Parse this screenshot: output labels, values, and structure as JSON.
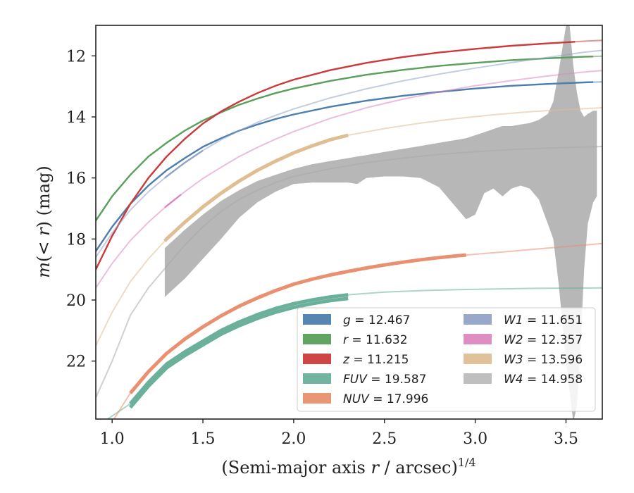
{
  "chart_data": {
    "type": "line",
    "xlabel_main": "(Semi-major axis ",
    "xlabel_var": "r",
    "xlabel_unit": " / arcsec)",
    "xlabel_sup": "1/4",
    "ylabel_main": "m(< r) (mag)",
    "xlim": [
      0.91,
      3.7
    ],
    "ylim": [
      23.9,
      11.0
    ],
    "y_inverted": true,
    "xticks": [
      1.0,
      1.5,
      2.0,
      2.5,
      3.0,
      3.5
    ],
    "xtick_labels": [
      "1.0",
      "1.5",
      "2.0",
      "2.5",
      "3.0",
      "3.5"
    ],
    "yticks": [
      12,
      14,
      16,
      18,
      20,
      22
    ],
    "ytick_labels": [
      "12",
      "14",
      "16",
      "18",
      "20",
      "22"
    ],
    "legend_position": "lower-right",
    "series": [
      {
        "name": "g",
        "label_value": "12.467",
        "color": "#4c7fae",
        "x": [
          0.91,
          1.0,
          1.1,
          1.2,
          1.3,
          1.4,
          1.5,
          1.6,
          1.7,
          1.8,
          1.9,
          2.0,
          2.2,
          2.4,
          2.6,
          2.8,
          3.0,
          3.2,
          3.4,
          3.6,
          3.7
        ],
        "y": [
          18.4,
          17.6,
          16.85,
          16.25,
          15.75,
          15.35,
          14.98,
          14.7,
          14.45,
          14.25,
          14.07,
          13.92,
          13.67,
          13.47,
          13.31,
          13.18,
          13.07,
          12.98,
          12.92,
          12.87,
          12.85
        ],
        "solid_until": 3.65
      },
      {
        "name": "r",
        "label_value": "11.632",
        "color": "#5aa05a",
        "x": [
          0.91,
          1.0,
          1.1,
          1.2,
          1.3,
          1.4,
          1.5,
          1.6,
          1.7,
          1.8,
          1.9,
          2.0,
          2.2,
          2.4,
          2.6,
          2.8,
          3.0,
          3.2,
          3.4,
          3.6,
          3.7
        ],
        "y": [
          17.4,
          16.6,
          15.9,
          15.3,
          14.85,
          14.45,
          14.12,
          13.85,
          13.6,
          13.4,
          13.22,
          13.07,
          12.82,
          12.62,
          12.46,
          12.33,
          12.23,
          12.14,
          12.08,
          12.03,
          12.01
        ],
        "solid_until": 3.65
      },
      {
        "name": "z",
        "label_value": "11.215",
        "color": "#cc3a3a",
        "x": [
          0.91,
          1.0,
          1.1,
          1.2,
          1.3,
          1.4,
          1.5,
          1.6,
          1.7,
          1.8,
          1.9,
          2.0,
          2.2,
          2.4,
          2.6,
          2.8,
          3.0,
          3.2,
          3.4,
          3.6,
          3.7
        ],
        "y": [
          19.0,
          17.9,
          16.85,
          16.0,
          15.3,
          14.72,
          14.22,
          13.82,
          13.5,
          13.22,
          12.98,
          12.78,
          12.47,
          12.23,
          12.04,
          11.89,
          11.77,
          11.67,
          11.59,
          11.52,
          11.49
        ],
        "solid_until": 3.55
      },
      {
        "name": "FUV",
        "label_value": "19.587",
        "color": "#6ab09b",
        "x": [
          1.1,
          1.2,
          1.3,
          1.4,
          1.5,
          1.6,
          1.7,
          1.8,
          1.9,
          2.0,
          2.1,
          2.2,
          2.3,
          2.5,
          2.7,
          2.9,
          3.1,
          3.3,
          3.5,
          3.7
        ],
        "y": [
          23.4,
          22.7,
          22.1,
          21.7,
          21.35,
          21.0,
          20.72,
          20.48,
          20.28,
          20.12,
          20.0,
          19.9,
          19.83,
          19.74,
          19.69,
          19.66,
          19.64,
          19.62,
          19.61,
          19.6
        ],
        "solid_until": 2.3,
        "faint_before": [
          0.95,
          24.0
        ]
      },
      {
        "name": "NUV",
        "label_value": "17.996",
        "color": "#e89070",
        "x": [
          1.1,
          1.2,
          1.3,
          1.4,
          1.5,
          1.6,
          1.7,
          1.8,
          1.9,
          2.0,
          2.1,
          2.2,
          2.3,
          2.4,
          2.5,
          2.6,
          2.7,
          2.8,
          2.9,
          3.0,
          3.2,
          3.4,
          3.6,
          3.7
        ],
        "y": [
          23.05,
          22.35,
          21.75,
          21.28,
          20.88,
          20.52,
          20.2,
          19.93,
          19.69,
          19.48,
          19.32,
          19.18,
          19.06,
          18.95,
          18.85,
          18.76,
          18.68,
          18.61,
          18.55,
          18.5,
          18.4,
          18.3,
          18.2,
          18.15
        ],
        "solid_until": 2.95,
        "faint_before": [
          1.0,
          24.0
        ]
      },
      {
        "name": "W1",
        "label_value": "11.651",
        "color": "#92a3c7",
        "x": [
          0.91,
          1.0,
          1.1,
          1.2,
          1.3,
          1.4,
          1.5,
          1.6,
          1.7,
          1.8,
          1.9,
          2.0,
          2.2,
          2.4,
          2.6,
          2.8,
          3.0,
          3.2,
          3.4,
          3.6,
          3.7
        ],
        "y": [
          18.6,
          17.8,
          17.05,
          16.45,
          15.95,
          15.5,
          15.1,
          14.75,
          14.45,
          14.18,
          13.95,
          13.74,
          13.38,
          13.08,
          12.82,
          12.6,
          12.4,
          12.22,
          12.05,
          11.88,
          11.82
        ],
        "solid_until": 1.5,
        "solid_from": 1.29
      },
      {
        "name": "W2",
        "label_value": "12.357",
        "color": "#dd88c0",
        "x": [
          0.91,
          1.0,
          1.1,
          1.2,
          1.3,
          1.4,
          1.5,
          1.6,
          1.7,
          1.8,
          1.9,
          2.0,
          2.2,
          2.4,
          2.6,
          2.8,
          3.0,
          3.2,
          3.4,
          3.6,
          3.7
        ],
        "y": [
          19.6,
          18.8,
          18.05,
          17.45,
          16.92,
          16.45,
          16.02,
          15.65,
          15.3,
          15.0,
          14.73,
          14.48,
          14.05,
          13.7,
          13.42,
          13.18,
          12.98,
          12.81,
          12.66,
          12.53,
          12.48
        ],
        "solid_until": 1.38,
        "solid_from": 1.29
      },
      {
        "name": "W3",
        "label_value": "13.596",
        "color": "#dfbe94",
        "x": [
          0.91,
          1.0,
          1.1,
          1.2,
          1.3,
          1.4,
          1.5,
          1.6,
          1.7,
          1.8,
          1.9,
          2.0,
          2.1,
          2.2,
          2.3,
          2.5,
          2.7,
          2.9,
          3.1,
          3.3,
          3.5,
          3.7
        ],
        "y": [
          21.5,
          20.4,
          19.4,
          18.65,
          18.0,
          17.45,
          16.95,
          16.5,
          16.1,
          15.75,
          15.45,
          15.18,
          14.95,
          14.75,
          14.6,
          14.38,
          14.2,
          14.05,
          13.93,
          13.83,
          13.76,
          13.7
        ],
        "solid_until": 2.3,
        "solid_from": 1.29
      },
      {
        "name": "W4",
        "label_value": "14.958",
        "color": "#aaaaaa",
        "x": [
          0.91,
          1.0,
          1.1,
          1.2,
          1.3,
          1.4,
          1.5,
          1.6,
          1.7,
          1.8,
          1.9,
          2.0,
          2.2,
          2.4,
          2.6,
          2.8,
          3.0,
          3.2,
          3.4,
          3.6,
          3.7
        ],
        "y": [
          23.2,
          22.0,
          20.5,
          19.6,
          18.9,
          18.2,
          17.6,
          17.1,
          16.7,
          16.4,
          16.15,
          15.95,
          15.7,
          15.5,
          15.35,
          15.23,
          15.14,
          15.07,
          15.02,
          14.99,
          14.97
        ],
        "band_x": [
          1.29,
          1.4,
          1.5,
          1.6,
          1.7,
          1.8,
          1.9,
          2.0,
          2.1,
          2.2,
          2.3,
          2.35,
          2.4,
          2.5,
          2.6,
          2.7,
          2.8,
          2.9,
          2.95,
          3.0,
          3.05,
          3.1,
          3.15,
          3.2,
          3.25,
          3.3,
          3.35,
          3.4,
          3.43,
          3.46,
          3.5,
          3.52,
          3.54,
          3.56,
          3.58,
          3.6,
          3.62,
          3.65,
          3.67
        ],
        "band_upper": [
          18.3,
          17.7,
          17.2,
          16.75,
          16.4,
          16.1,
          15.9,
          15.7,
          15.55,
          15.45,
          15.35,
          15.3,
          15.25,
          15.15,
          15.05,
          14.95,
          14.85,
          14.75,
          14.7,
          14.6,
          14.5,
          14.4,
          14.3,
          14.3,
          14.25,
          14.2,
          14.1,
          13.9,
          13.5,
          12.5,
          11.0,
          11.0,
          12.3,
          13.2,
          13.8,
          14.0,
          13.9,
          13.8,
          13.8
        ],
        "band_lower": [
          19.9,
          19.3,
          18.65,
          18.0,
          17.3,
          16.8,
          16.45,
          16.2,
          16.15,
          16.15,
          16.15,
          16.2,
          16.0,
          15.95,
          15.95,
          16.0,
          16.3,
          17.0,
          17.35,
          17.2,
          16.5,
          16.35,
          16.6,
          16.35,
          16.25,
          16.35,
          16.7,
          17.5,
          18.0,
          19.5,
          22.0,
          23.0,
          24.0,
          23.5,
          21.5,
          19.0,
          17.5,
          16.8,
          16.6
        ]
      }
    ]
  }
}
